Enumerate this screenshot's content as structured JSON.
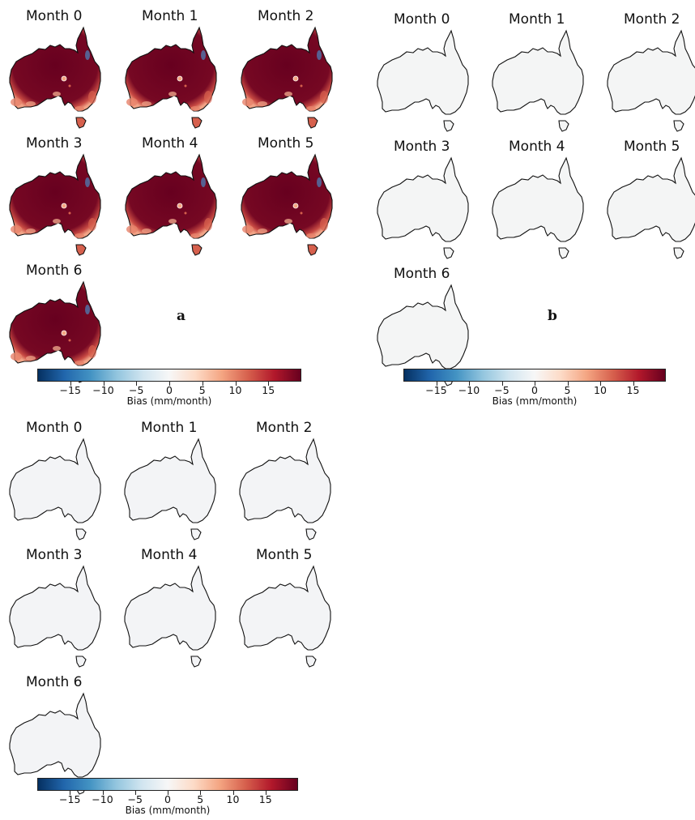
{
  "panels": [
    {
      "label": "a",
      "fill": "#70061f",
      "maps": [
        {
          "title": "Month 0"
        },
        {
          "title": "Month 1"
        },
        {
          "title": "Month 2"
        },
        {
          "title": "Month 3"
        },
        {
          "title": "Month 4"
        },
        {
          "title": "Month 5"
        },
        {
          "title": "Month 6"
        }
      ]
    },
    {
      "label": "b",
      "fill": "#f4f5f5",
      "maps": [
        {
          "title": "Month 0"
        },
        {
          "title": "Month 1"
        },
        {
          "title": "Month 2"
        },
        {
          "title": "Month 3"
        },
        {
          "title": "Month 4"
        },
        {
          "title": "Month 5"
        },
        {
          "title": "Month 6"
        }
      ]
    },
    {
      "label": "",
      "fill": "#f3f4f6",
      "maps": [
        {
          "title": "Month 0"
        },
        {
          "title": "Month 1"
        },
        {
          "title": "Month 2"
        },
        {
          "title": "Month 3"
        },
        {
          "title": "Month 4"
        },
        {
          "title": "Month 5"
        },
        {
          "title": "Month 6"
        }
      ]
    }
  ],
  "colorbar": {
    "label": "Bias (mm/month)",
    "ticks": [
      "−15",
      "−10",
      "−5",
      "0",
      "5",
      "10",
      "15"
    ],
    "tick_values": [
      -15,
      -10,
      -5,
      0,
      5,
      10,
      15
    ],
    "range": [
      -20,
      20
    ],
    "colors": [
      "#053061",
      "#2166ac",
      "#4393c3",
      "#92c5de",
      "#d1e5f0",
      "#f7f7f7",
      "#fddbc7",
      "#f4a582",
      "#d6604d",
      "#b2182b",
      "#67001f"
    ]
  },
  "icons": {
    "map": "australia-outline"
  }
}
